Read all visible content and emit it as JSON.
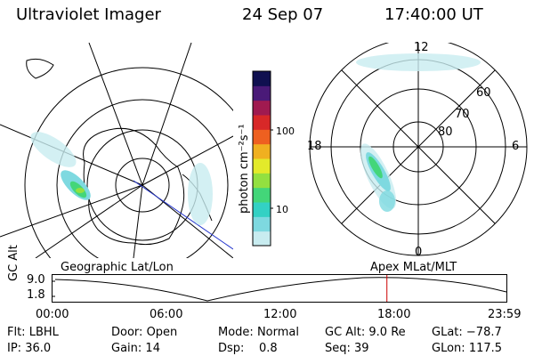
{
  "header": {
    "instrument": "Ultraviolet Imager",
    "date": "24 Sep 07",
    "time": "17:40:00 UT"
  },
  "left_panel": {
    "label": "Geographic Lat/Lon"
  },
  "right_panel": {
    "label": "Apex MLat/MLT",
    "mlt_labels": {
      "top": "12",
      "left": "18",
      "right": "6",
      "bottom": "0"
    },
    "lat_labels": [
      "60",
      "70",
      "80"
    ]
  },
  "colorbar": {
    "unit_label": "photon cm⁻²s⁻¹",
    "ticks": [
      "100",
      "10"
    ],
    "colors": [
      "#c8ecf0",
      "#7ed9e0",
      "#33d1c4",
      "#43d679",
      "#93e040",
      "#e3ea2a",
      "#f0b020",
      "#ee6020",
      "#d82828",
      "#a01a50",
      "#4a1a78",
      "#101050"
    ]
  },
  "altitude_strip": {
    "axis_label": "GC Alt",
    "y_ticks": [
      "9.0",
      "1.8"
    ],
    "x_ticks": [
      "00:00",
      "06:00",
      "12:00",
      "18:00",
      "23:59"
    ],
    "current_time_hours": 17.67,
    "marker_color": "#cc0000"
  },
  "status": {
    "flt": {
      "label": "Flt:",
      "value": "LBHL"
    },
    "ip": {
      "label": "IP:",
      "value": "36.0"
    },
    "door": {
      "label": "Door:",
      "value": "Open"
    },
    "gain": {
      "label": "Gain:",
      "value": "14"
    },
    "mode": {
      "label": "Mode:",
      "value": "Normal"
    },
    "dsp": {
      "label": "Dsp:",
      "value": "0.8"
    },
    "gc_alt": {
      "label": "GC Alt:",
      "value": "9.0 Re"
    },
    "seq": {
      "label": "Seq:",
      "value": "39"
    },
    "glat": {
      "label": "GLat:",
      "value": "−78.7"
    },
    "glon": {
      "label": "GLon:",
      "value": "117.5"
    }
  }
}
